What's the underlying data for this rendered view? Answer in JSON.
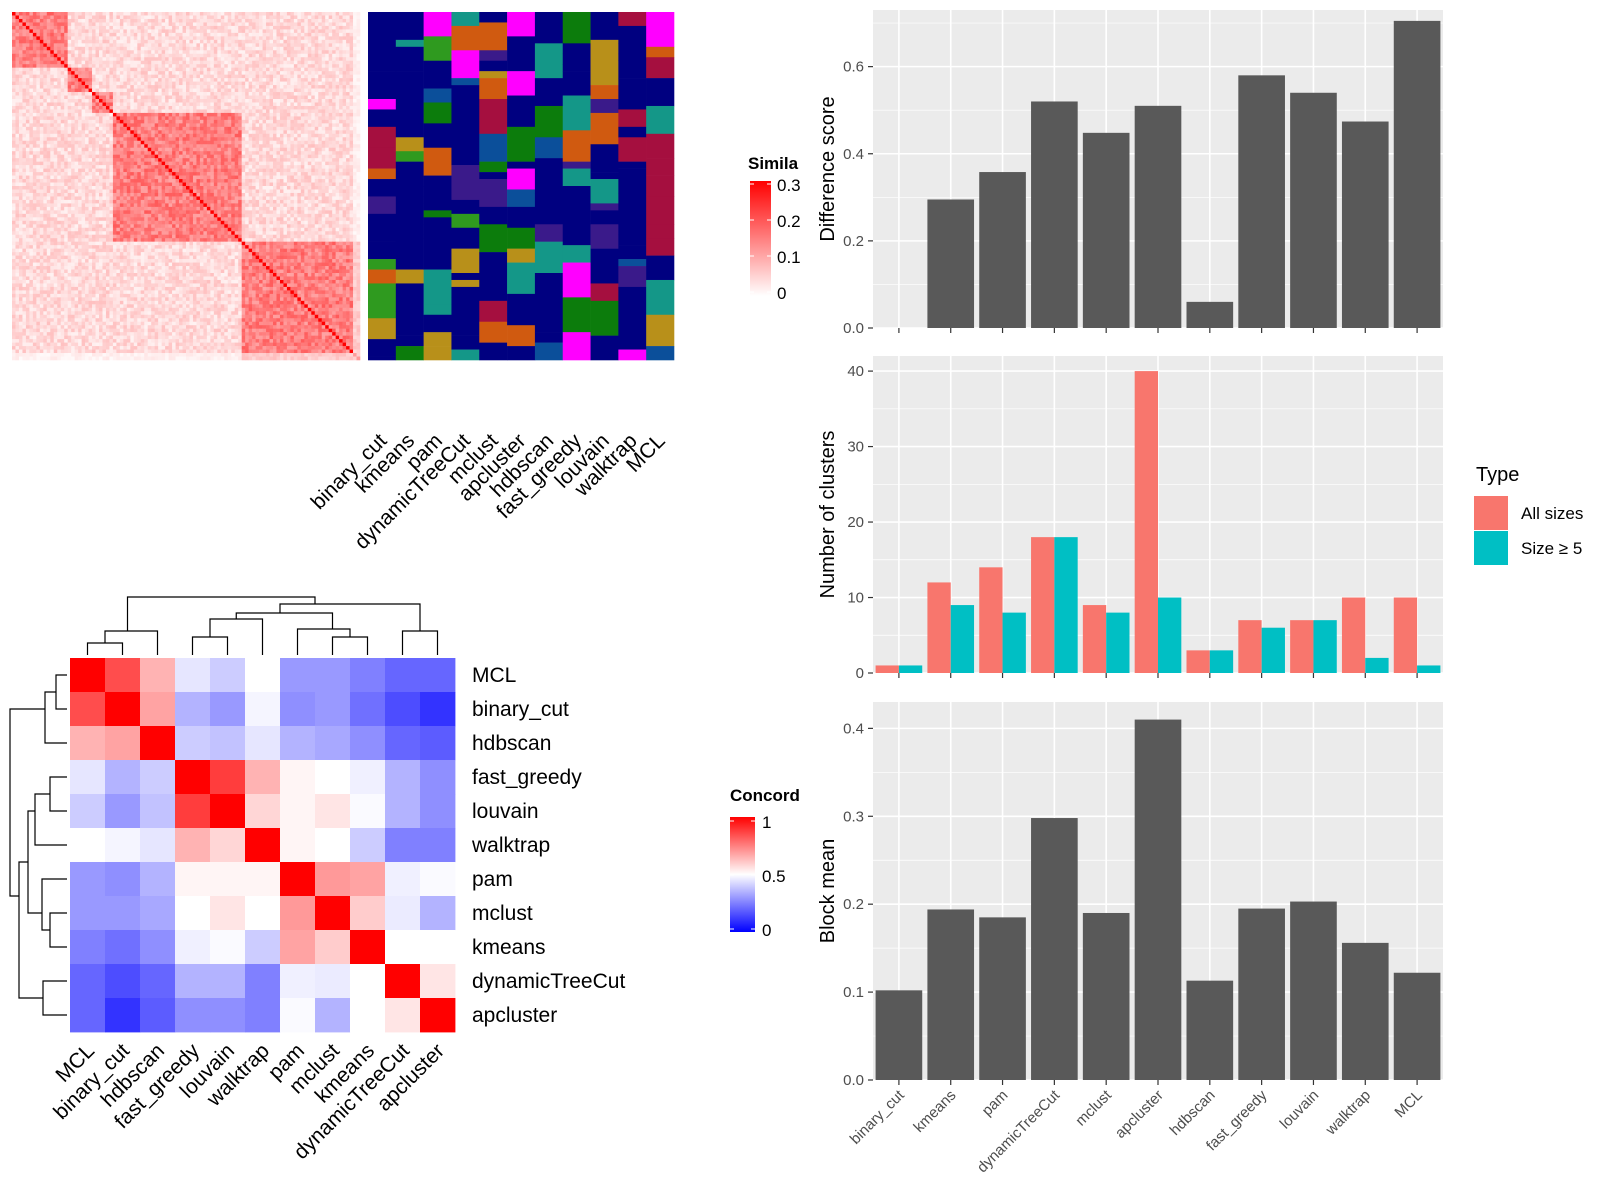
{
  "colors": {
    "panel_bg": "#ebebeb",
    "grid": "#ffffff",
    "bar_dark": "#595959",
    "all_sizes": "#f8766d",
    "size_ge5": "#00bfc4",
    "sim_low": "#ffffff",
    "sim_high": "#ff0000",
    "conc_low": "#0000ff",
    "conc_mid": "#ffffff",
    "conc_high": "#ff0000",
    "cluster_palette": [
      "#000080",
      "#2f9a1f",
      "#ff00ff",
      "#a50f3f",
      "#149788",
      "#b8901a",
      "#0b4f9a",
      "#d05a10",
      "#3a1a8a",
      "#0c7c0c"
    ]
  },
  "chart_data": [
    {
      "id": "similarity_heatmap",
      "type": "heatmap",
      "legend": {
        "title": "Simila",
        "ticks": [
          "0.3",
          "0.2",
          "0.1",
          "0"
        ]
      },
      "block_boundaries": [
        0,
        0.16,
        0.23,
        0.29,
        0.66,
        1.0
      ],
      "column_labels": [
        "binary_cut",
        "kmeans",
        "pam",
        "dynamicTreeCut",
        "mclust",
        "apcluster",
        "hdbscan",
        "fast_greedy",
        "louvain",
        "walktrap",
        "MCL"
      ]
    },
    {
      "id": "concordance_heatmap",
      "type": "heatmap",
      "legend": {
        "title": "Concord",
        "ticks": [
          "1",
          "0.5",
          "0"
        ]
      },
      "row_labels": [
        "MCL",
        "binary_cut",
        "hdbscan",
        "fast_greedy",
        "louvain",
        "walktrap",
        "pam",
        "mclust",
        "kmeans",
        "dynamicTreeCut",
        "apcluster"
      ],
      "col_labels": [
        "MCL",
        "binary_cut",
        "hdbscan",
        "fast_greedy",
        "louvain",
        "walktrap",
        "pam",
        "mclust",
        "kmeans",
        "dynamicTreeCut",
        "apcluster"
      ],
      "values": [
        [
          1.0,
          0.85,
          0.65,
          0.45,
          0.4,
          0.5,
          0.3,
          0.3,
          0.25,
          0.2,
          0.2
        ],
        [
          0.85,
          1.0,
          0.68,
          0.35,
          0.3,
          0.48,
          0.28,
          0.3,
          0.22,
          0.15,
          0.1
        ],
        [
          0.65,
          0.68,
          1.0,
          0.4,
          0.38,
          0.45,
          0.35,
          0.33,
          0.28,
          0.2,
          0.18
        ],
        [
          0.45,
          0.35,
          0.4,
          1.0,
          0.88,
          0.65,
          0.52,
          0.5,
          0.47,
          0.35,
          0.28
        ],
        [
          0.4,
          0.3,
          0.38,
          0.88,
          1.0,
          0.58,
          0.52,
          0.55,
          0.49,
          0.35,
          0.28
        ],
        [
          0.5,
          0.48,
          0.45,
          0.65,
          0.58,
          1.0,
          0.52,
          0.5,
          0.4,
          0.25,
          0.25
        ],
        [
          0.3,
          0.28,
          0.35,
          0.52,
          0.52,
          0.52,
          1.0,
          0.7,
          0.68,
          0.47,
          0.49
        ],
        [
          0.3,
          0.3,
          0.33,
          0.5,
          0.55,
          0.5,
          0.7,
          1.0,
          0.6,
          0.46,
          0.35
        ],
        [
          0.25,
          0.22,
          0.28,
          0.47,
          0.49,
          0.4,
          0.68,
          0.6,
          1.0,
          0.5,
          0.5
        ],
        [
          0.2,
          0.15,
          0.2,
          0.35,
          0.35,
          0.25,
          0.47,
          0.46,
          0.5,
          1.0,
          0.55
        ],
        [
          0.2,
          0.1,
          0.18,
          0.28,
          0.28,
          0.25,
          0.49,
          0.35,
          0.5,
          0.55,
          1.0
        ]
      ]
    },
    {
      "id": "difference_score",
      "type": "bar",
      "categories": [
        "binary_cut",
        "kmeans",
        "pam",
        "dynamicTreeCut",
        "mclust",
        "apcluster",
        "hdbscan",
        "fast_greedy",
        "louvain",
        "walktrap",
        "MCL"
      ],
      "values": [
        0.0,
        0.295,
        0.358,
        0.52,
        0.448,
        0.51,
        0.06,
        0.58,
        0.54,
        0.474,
        0.705
      ],
      "ylabel": "Difference score",
      "ylim": [
        0,
        0.73
      ],
      "yticks": [
        "0.0",
        "0.2",
        "0.4",
        "0.6"
      ]
    },
    {
      "id": "number_of_clusters",
      "type": "bar",
      "categories": [
        "binary_cut",
        "kmeans",
        "pam",
        "dynamicTreeCut",
        "mclust",
        "apcluster",
        "hdbscan",
        "fast_greedy",
        "louvain",
        "walktrap",
        "MCL"
      ],
      "series": [
        {
          "name": "All sizes",
          "values": [
            1,
            12,
            14,
            18,
            9,
            40,
            3,
            7,
            7,
            10,
            10
          ]
        },
        {
          "name": "Size ≥ 5",
          "values": [
            1,
            9,
            8,
            18,
            8,
            10,
            3,
            6,
            7,
            2,
            1
          ]
        }
      ],
      "ylabel": "Number of clusters",
      "ylim": [
        0,
        42
      ],
      "yticks": [
        "0",
        "10",
        "20",
        "30",
        "40"
      ],
      "legend": {
        "title": "Type",
        "position": "right"
      }
    },
    {
      "id": "block_mean",
      "type": "bar",
      "categories": [
        "binary_cut",
        "kmeans",
        "pam",
        "dynamicTreeCut",
        "mclust",
        "apcluster",
        "hdbscan",
        "fast_greedy",
        "louvain",
        "walktrap",
        "MCL"
      ],
      "values": [
        0.102,
        0.194,
        0.185,
        0.298,
        0.19,
        0.41,
        0.113,
        0.195,
        0.203,
        0.156,
        0.122
      ],
      "ylabel": "Block mean",
      "ylim": [
        0,
        0.43
      ],
      "yticks": [
        "0.0",
        "0.1",
        "0.2",
        "0.3",
        "0.4"
      ]
    }
  ]
}
